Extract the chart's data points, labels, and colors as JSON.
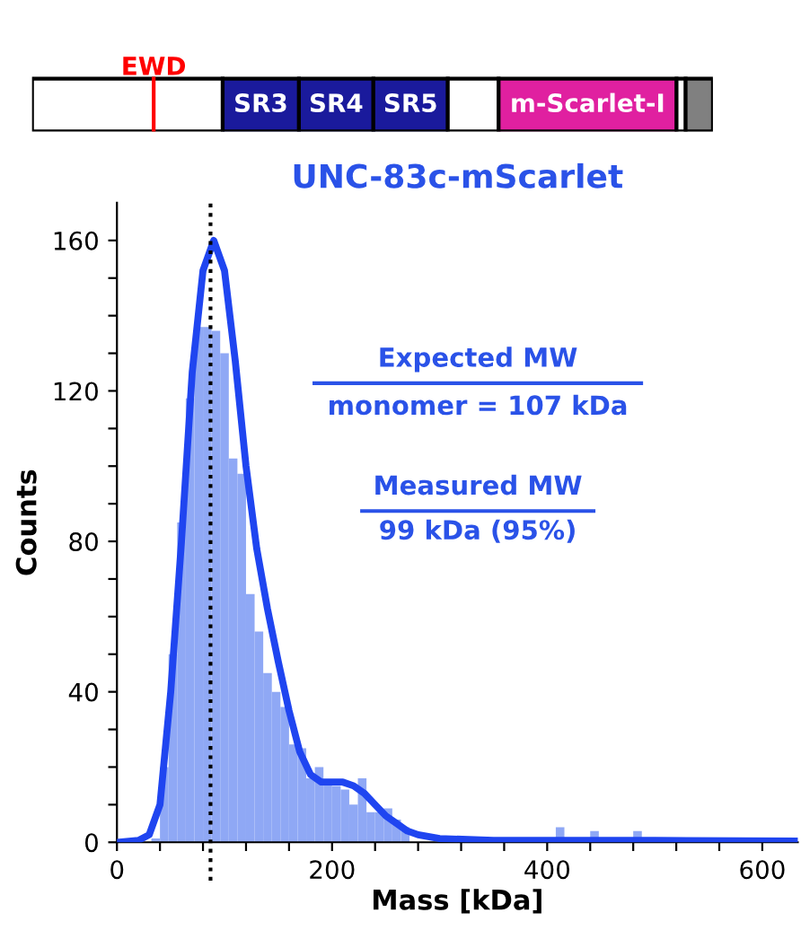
{
  "chart_data": [
    {
      "type": "other",
      "annotations": [
        "EWD",
        "SR3",
        "SR4",
        "SR5",
        "m-Scarlet-I"
      ]
    },
    {
      "type": "histogram",
      "title": "UNC-83c-mScarlet",
      "xlabel": "Mass [kDa]",
      "ylabel": "Counts",
      "color": "#8fa8f5",
      "bins": [
        32,
        40,
        48,
        56,
        64,
        72,
        80,
        88,
        96,
        104,
        112,
        120,
        128,
        136,
        144,
        152,
        160,
        168,
        176,
        184,
        192,
        200,
        208,
        216,
        224,
        232,
        240,
        248,
        256,
        264,
        272,
        280,
        288,
        296,
        304,
        312,
        320,
        328,
        336,
        344,
        352,
        360,
        368,
        376,
        384,
        392,
        400,
        408,
        416,
        424,
        432,
        440,
        448,
        456,
        464,
        472,
        480,
        488,
        496,
        504,
        512,
        520,
        528,
        536,
        544,
        552,
        560,
        568,
        576,
        584,
        592,
        600,
        608,
        616,
        624,
        632
      ],
      "values": [
        1,
        20,
        50,
        85,
        118,
        137,
        137,
        136,
        130,
        102,
        98,
        66,
        56,
        45,
        40,
        36,
        26,
        25,
        17,
        20,
        16,
        15,
        14,
        10,
        17,
        8,
        8,
        9,
        6,
        4,
        null,
        null,
        null,
        null,
        null,
        0,
        null,
        0,
        null,
        null,
        0,
        null,
        0,
        null,
        0,
        null,
        0,
        4,
        null,
        0,
        null,
        3,
        0,
        null,
        0,
        null,
        3,
        null,
        0,
        0,
        null,
        0,
        0,
        null,
        0,
        0,
        0,
        null,
        0,
        0,
        0,
        0,
        null,
        0,
        0
      ],
      "series": [
        {
          "type": "line",
          "color": "#1f45f0",
          "x": [
            0,
            20,
            30,
            40,
            50,
            60,
            70,
            80,
            90,
            100,
            110,
            120,
            130,
            140,
            150,
            160,
            170,
            180,
            190,
            200,
            210,
            220,
            230,
            240,
            250,
            260,
            270,
            280,
            300,
            350,
            400,
            500,
            633
          ],
          "values": [
            0,
            0.5,
            2,
            10,
            40,
            80,
            125,
            152,
            160,
            152,
            128,
            100,
            78,
            62,
            48,
            35,
            24,
            18,
            16,
            16,
            16,
            15,
            13,
            10,
            7,
            5,
            3,
            2,
            1,
            0.5,
            0.5,
            0.5,
            0.3
          ]
        }
      ],
      "ref_lines": [
        {
          "axis": "x",
          "value": 87,
          "color": "#000000",
          "line_style": "dotted"
        }
      ],
      "annotations": [
        "Expected MW",
        "monomer = 107 kDa",
        "Measured MW",
        "99 kDa (95%)"
      ],
      "xlim": [
        0,
        633
      ],
      "ylim": [
        0,
        170
      ],
      "xticks": [
        0,
        {
          "value": 40,
          "label": null
        },
        {
          "value": 80,
          "label": null
        },
        {
          "value": 120,
          "label": null
        },
        {
          "value": 160,
          "label": null
        },
        200,
        {
          "value": 240,
          "label": null
        },
        {
          "value": 280,
          "label": null
        },
        {
          "value": 320,
          "label": null
        },
        {
          "value": 360,
          "label": null
        },
        400,
        {
          "value": 440,
          "label": null
        },
        {
          "value": 480,
          "label": null
        },
        {
          "value": 520,
          "label": null
        },
        {
          "value": 560,
          "label": null
        },
        600
      ],
      "yticks": [
        0,
        {
          "value": 10,
          "label": null
        },
        {
          "value": 20,
          "label": null
        },
        {
          "value": 30,
          "label": null
        },
        40,
        {
          "value": 50,
          "label": null
        },
        {
          "value": 60,
          "label": null
        },
        {
          "value": 70,
          "label": null
        },
        80,
        {
          "value": 90,
          "label": null
        },
        {
          "value": 100,
          "label": null
        },
        {
          "value": 110,
          "label": null
        },
        120,
        {
          "value": 130,
          "label": null
        },
        {
          "value": 140,
          "label": null
        },
        {
          "value": 150,
          "label": null
        },
        160
      ],
      "grid": false,
      "legend": false
    }
  ]
}
